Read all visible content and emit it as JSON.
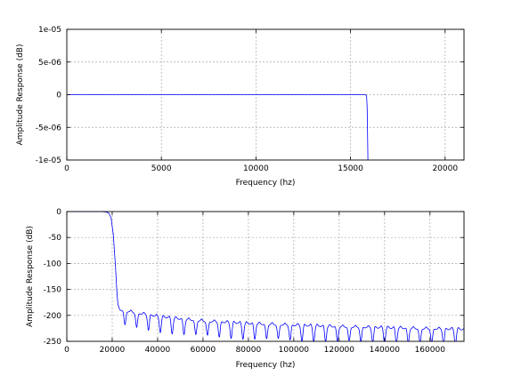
{
  "chart_data": [
    {
      "type": "line",
      "xlabel": "Frequency (hz)",
      "ylabel": "Amplitude Response (dB)",
      "xlim": [
        0,
        21000
      ],
      "ylim": [
        -1e-05,
        1e-05
      ],
      "x_ticks": [
        0,
        5000,
        10000,
        15000,
        20000
      ],
      "x_tick_labels": [
        "0",
        "5000",
        "10000",
        "15000",
        "20000"
      ],
      "y_ticks": [
        -1e-05,
        -5e-06,
        0,
        5e-06,
        1e-05
      ],
      "y_tick_labels": [
        "-1e-05",
        "-5e-06",
        "0",
        "5e-06",
        "1e-05"
      ],
      "grid": true,
      "series": [
        {
          "color": "#0000ff",
          "x": [
            0,
            2000,
            4000,
            6000,
            8000,
            10000,
            12000,
            14000,
            15500,
            15800,
            15850,
            15880,
            15900,
            15920
          ],
          "y": [
            0,
            0,
            0,
            0,
            0,
            0,
            0,
            0,
            0,
            0,
            -2e-07,
            -2e-06,
            -6e-06,
            -1.05e-05
          ]
        }
      ]
    },
    {
      "type": "line",
      "xlabel": "Frequency (hz)",
      "ylabel": "Amplitude Response (dB)",
      "xlim": [
        0,
        175000
      ],
      "ylim": [
        -250,
        0
      ],
      "x_ticks": [
        0,
        20000,
        40000,
        60000,
        80000,
        100000,
        120000,
        140000,
        160000
      ],
      "x_tick_labels": [
        "0",
        "20000",
        "40000",
        "60000",
        "80000",
        "100000",
        "120000",
        "140000",
        "160000"
      ],
      "y_ticks": [
        -250,
        -200,
        -150,
        -100,
        -50,
        0
      ],
      "y_tick_labels": [
        "-250",
        "-200",
        "-150",
        "-100",
        "-50",
        "0"
      ],
      "grid": true,
      "series": [
        {
          "color": "#0000ff",
          "x": [
            0,
            15000,
            17000,
            18500,
            19500,
            20500,
            21500,
            22000,
            22500,
            23000
          ],
          "y": [
            0,
            0,
            -0.5,
            -3,
            -12,
            -45,
            -110,
            -150,
            -178,
            -185
          ],
          "stopband_floor": [
            [
              23000,
              -188
            ],
            [
              30000,
              -194
            ],
            [
              40000,
              -201
            ],
            [
              50000,
              -206
            ],
            [
              60000,
              -210
            ],
            [
              80000,
              -215
            ],
            [
              100000,
              -218
            ],
            [
              120000,
              -221
            ],
            [
              140000,
              -223
            ],
            [
              160000,
              -225
            ],
            [
              175000,
              -226
            ]
          ],
          "notch_spacing": 5200,
          "notch_depth": 30
        }
      ]
    }
  ]
}
